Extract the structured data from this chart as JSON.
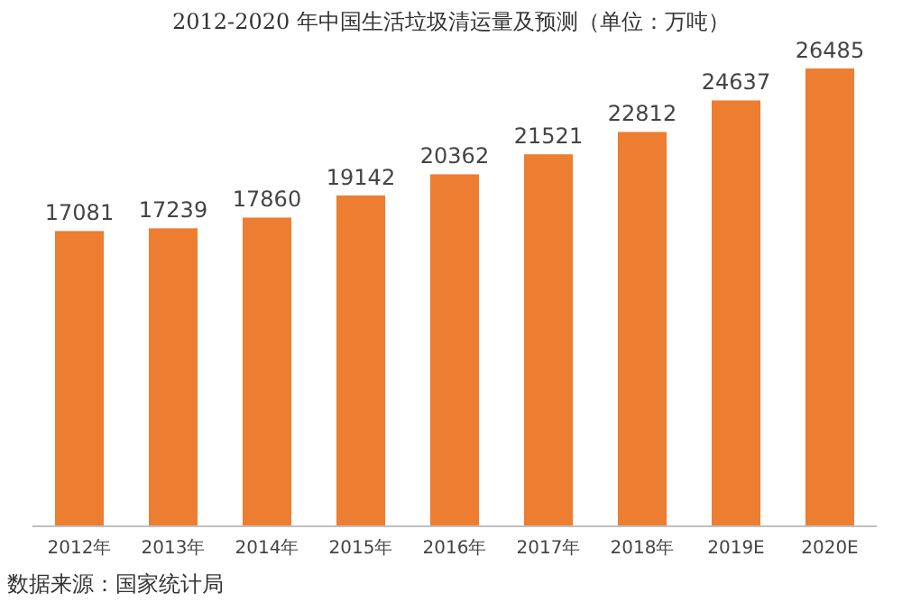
{
  "chart_data": {
    "type": "bar",
    "title": "2012-2020 年中国生活垃圾清运量及预测（单位：万吨）",
    "categories": [
      "2012年",
      "2013年",
      "2014年",
      "2015年",
      "2016年",
      "2017年",
      "2018年",
      "2019E",
      "2020E"
    ],
    "values": [
      17081,
      17239,
      17860,
      19142,
      20362,
      21521,
      22812,
      24637,
      26485
    ],
    "color": "#ed7d31",
    "data_labels": true,
    "annotations": [
      "数据来源：国家统计局"
    ]
  }
}
